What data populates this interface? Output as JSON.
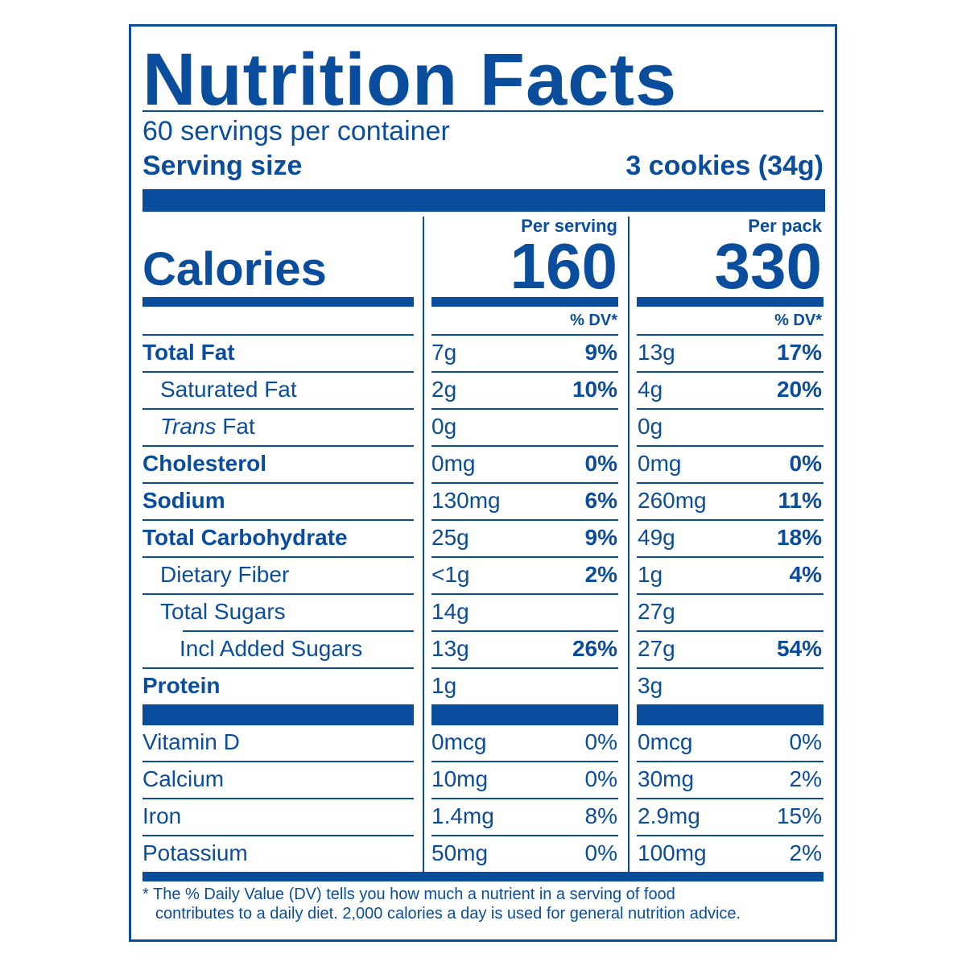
{
  "header": {
    "title": "Nutrition Facts",
    "servings": "60 servings per container",
    "serving_size_label": "Serving size",
    "serving_size_value": "3 cookies (34g)"
  },
  "calories": {
    "label": "Calories",
    "per_serving_head": "Per serving",
    "per_pack_head": "Per pack",
    "per_serving_value": "160",
    "per_pack_value": "330",
    "dv_head": "% DV*"
  },
  "nutrients": [
    {
      "label": "Total Fat",
      "ps_amt": "7g",
      "ps_dv": "9%",
      "pp_amt": "13g",
      "pp_dv": "17%"
    },
    {
      "label": "Saturated Fat",
      "ps_amt": "2g",
      "ps_dv": "10%",
      "pp_amt": "4g",
      "pp_dv": "20%"
    },
    {
      "label_italic": "Trans",
      "label_rest": " Fat",
      "ps_amt": "0g",
      "ps_dv": "",
      "pp_amt": "0g",
      "pp_dv": ""
    },
    {
      "label": "Cholesterol",
      "ps_amt": "0mg",
      "ps_dv": "0%",
      "pp_amt": "0mg",
      "pp_dv": "0%"
    },
    {
      "label": "Sodium",
      "ps_amt": "130mg",
      "ps_dv": "6%",
      "pp_amt": "260mg",
      "pp_dv": "11%"
    },
    {
      "label": "Total Carbohydrate",
      "ps_amt": "25g",
      "ps_dv": "9%",
      "pp_amt": "49g",
      "pp_dv": "18%"
    },
    {
      "label": "Dietary Fiber",
      "ps_amt": "<1g",
      "ps_dv": "2%",
      "pp_amt": "1g",
      "pp_dv": "4%"
    },
    {
      "label": "Total Sugars",
      "ps_amt": "14g",
      "ps_dv": "",
      "pp_amt": "27g",
      "pp_dv": ""
    },
    {
      "label": "Incl Added Sugars",
      "ps_amt": "13g",
      "ps_dv": "26%",
      "pp_amt": "27g",
      "pp_dv": "54%"
    },
    {
      "label": "Protein",
      "ps_amt": "1g",
      "ps_dv": "",
      "pp_amt": "3g",
      "pp_dv": ""
    }
  ],
  "vitamins": [
    {
      "label": "Vitamin D",
      "ps_amt": "0mcg",
      "ps_dv": "0%",
      "pp_amt": "0mcg",
      "pp_dv": "0%"
    },
    {
      "label": "Calcium",
      "ps_amt": "10mg",
      "ps_dv": "0%",
      "pp_amt": "30mg",
      "pp_dv": "2%"
    },
    {
      "label": "Iron",
      "ps_amt": "1.4mg",
      "ps_dv": "8%",
      "pp_amt": "2.9mg",
      "pp_dv": "15%"
    },
    {
      "label": "Potassium",
      "ps_amt": "50mg",
      "ps_dv": "0%",
      "pp_amt": "100mg",
      "pp_dv": "2%"
    }
  ],
  "footnote": {
    "line1": "* The % Daily Value (DV) tells you how much a nutrient in a serving of food",
    "line2": "contributes to a daily diet. 2,000 calories a day is used for general nutrition advice."
  },
  "colors": {
    "ink": "#0a4d9c",
    "background": "#ffffff"
  }
}
